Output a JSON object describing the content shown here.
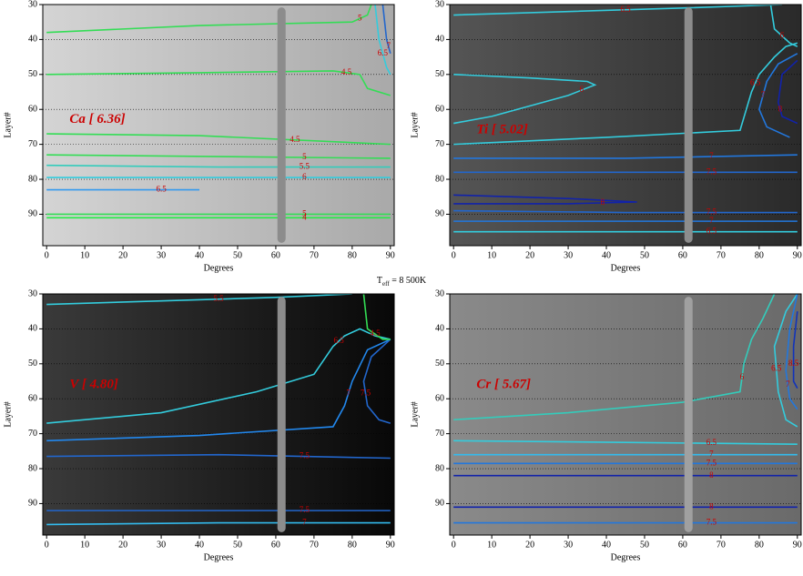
{
  "figure_label": {
    "main": "T",
    "sub": "eff",
    "rest": " = 8 500K"
  },
  "chart_data": [
    {
      "type": "contour",
      "annotation": "Ca [ 6.36]",
      "annotation_at": [
        6,
        63
      ],
      "x_label": "Degrees",
      "y_label": "Layer#",
      "xlim": [
        -1,
        91
      ],
      "ylim": [
        30,
        99
      ],
      "y_inverted": true,
      "xticks": [
        0,
        10,
        20,
        30,
        40,
        50,
        60,
        70,
        80,
        90
      ],
      "yticks": [
        30,
        40,
        50,
        60,
        70,
        80,
        90
      ],
      "grid": true,
      "background": [
        "#d4d4d4",
        "#a9a9a9"
      ],
      "marker": {
        "x": 61.5,
        "y": [
          32,
          97
        ],
        "color": "#8c8c8c"
      },
      "series": [
        {
          "level": 5,
          "color": "#33dd55",
          "x": [
            0,
            40,
            80,
            84,
            85
          ],
          "values": [
            38,
            36,
            35,
            33,
            30
          ]
        },
        {
          "level": 4.5,
          "color": "#33dd55",
          "x": [
            0,
            40,
            75,
            82,
            84,
            90
          ],
          "values": [
            50,
            49.5,
            49,
            50,
            54,
            56
          ]
        },
        {
          "level": 4.5,
          "color": "#33dd55",
          "x": [
            0,
            40,
            90
          ],
          "values": [
            67,
            67.5,
            70
          ]
        },
        {
          "level": 5,
          "color": "#33dd55",
          "x": [
            0,
            45,
            90
          ],
          "values": [
            73,
            73.5,
            74
          ]
        },
        {
          "level": 5.5,
          "color": "#33ccbb",
          "x": [
            0,
            45,
            90
          ],
          "values": [
            76,
            76.5,
            76.5
          ]
        },
        {
          "level": 6,
          "color": "#33ccdd",
          "x": [
            0,
            45,
            90
          ],
          "values": [
            79.5,
            79.5,
            79.5
          ]
        },
        {
          "level": 6.5,
          "color": "#3399ee",
          "x": [
            0,
            20,
            40
          ],
          "values": [
            83,
            83,
            83
          ]
        },
        {
          "level": 5,
          "color": "#33dd55",
          "x": [
            0,
            45,
            90
          ],
          "values": [
            90,
            90,
            90
          ]
        },
        {
          "level": 4,
          "color": "#22ee44",
          "x": [
            0,
            45,
            90
          ],
          "values": [
            91,
            91,
            91
          ]
        },
        {
          "level": 6.5,
          "color": "#33ccdd",
          "x": [
            86,
            87,
            89,
            90
          ],
          "values": [
            30,
            40,
            48,
            50
          ]
        },
        {
          "level": 7,
          "color": "#2266cc",
          "x": [
            88,
            89,
            90
          ],
          "values": [
            30,
            40,
            44
          ]
        }
      ]
    },
    {
      "type": "contour",
      "annotation": "Ti [ 5.02]",
      "annotation_at": [
        6,
        66
      ],
      "x_label": "Degrees",
      "y_label": "Layer#",
      "xlim": [
        -1,
        91
      ],
      "ylim": [
        30,
        99
      ],
      "y_inverted": true,
      "xticks": [
        0,
        10,
        20,
        30,
        40,
        50,
        60,
        70,
        80,
        90
      ],
      "yticks": [
        30,
        40,
        50,
        60,
        70,
        80,
        90
      ],
      "grid": true,
      "background": [
        "#555555",
        "#2a2a2a"
      ],
      "marker": {
        "x": 61.5,
        "y": [
          32,
          97
        ],
        "color": "#8c8c8c"
      },
      "series": [
        {
          "level": 6.5,
          "color": "#33ccdd",
          "x": [
            0,
            30,
            60,
            86
          ],
          "values": [
            33,
            32,
            31,
            30
          ]
        },
        {
          "level": 6,
          "color": "#33ccdd",
          "x": [
            0,
            20,
            35,
            37,
            30,
            20,
            10,
            0
          ],
          "values": [
            50,
            51,
            52,
            53,
            56,
            59,
            62,
            64
          ]
        },
        {
          "level": 6.5,
          "color": "#33ccdd",
          "x": [
            0,
            40,
            75,
            78,
            80,
            84,
            87,
            90
          ],
          "values": [
            70,
            68,
            66,
            55,
            50,
            45,
            42,
            41
          ]
        },
        {
          "level": 7,
          "color": "#2277dd",
          "x": [
            0,
            45,
            90
          ],
          "values": [
            74,
            74,
            73
          ]
        },
        {
          "level": 7.5,
          "color": "#2266cc",
          "x": [
            0,
            45,
            90
          ],
          "values": [
            78,
            78,
            78
          ]
        },
        {
          "level": 8,
          "color": "#1122aa",
          "x": [
            0,
            30,
            48,
            30,
            0
          ],
          "values": [
            84.5,
            85.5,
            86.5,
            87,
            87
          ]
        },
        {
          "level": 7.5,
          "color": "#2266cc",
          "x": [
            0,
            45,
            90
          ],
          "values": [
            89,
            89.5,
            89.5
          ]
        },
        {
          "level": 7,
          "color": "#2277dd",
          "x": [
            0,
            45,
            90
          ],
          "values": [
            92,
            92,
            92
          ]
        },
        {
          "level": 6.5,
          "color": "#33ccdd",
          "x": [
            0,
            45,
            90
          ],
          "values": [
            95,
            95,
            95
          ]
        },
        {
          "level": 7,
          "color": "#2277dd",
          "x": [
            90,
            85,
            82,
            80,
            82,
            88
          ],
          "values": [
            44,
            47,
            52,
            60,
            65,
            68
          ]
        },
        {
          "level": 8,
          "color": "#1122aa",
          "x": [
            90,
            86,
            85,
            86,
            90
          ],
          "values": [
            46,
            50,
            58,
            62,
            64
          ]
        },
        {
          "level": 6,
          "color": "#33ccdd",
          "x": [
            83,
            84,
            88,
            90
          ],
          "values": [
            30,
            37,
            41,
            42
          ]
        }
      ]
    },
    {
      "type": "contour",
      "annotation": "V [ 4.80]",
      "annotation_at": [
        6,
        56
      ],
      "x_label": "Degrees",
      "y_label": "Layer#",
      "xlim": [
        -1,
        91
      ],
      "ylim": [
        30,
        99
      ],
      "y_inverted": true,
      "xticks": [
        0,
        10,
        20,
        30,
        40,
        50,
        60,
        70,
        80,
        90
      ],
      "yticks": [
        30,
        40,
        50,
        60,
        70,
        80,
        90
      ],
      "grid": true,
      "background": [
        "#3a3a3a",
        "#080808"
      ],
      "marker": {
        "x": 61.5,
        "y": [
          32,
          97
        ],
        "color": "#8c8c8c"
      },
      "series": [
        {
          "level": 5.5,
          "color": "#33ccdd",
          "x": [
            0,
            30,
            60,
            80
          ],
          "values": [
            33,
            32,
            31,
            30
          ]
        },
        {
          "level": 6.5,
          "color": "#33ccdd",
          "x": [
            0,
            30,
            55,
            70,
            75,
            78,
            82,
            86,
            90
          ],
          "values": [
            67,
            64,
            58,
            53,
            45,
            42,
            40,
            42,
            43
          ]
        },
        {
          "level": 7,
          "color": "#2288ee",
          "x": [
            0,
            40,
            75,
            78,
            80,
            84,
            90
          ],
          "values": [
            72,
            70.5,
            68,
            62,
            55,
            46,
            43
          ]
        },
        {
          "level": 7.5,
          "color": "#2266cc",
          "x": [
            0,
            45,
            90
          ],
          "values": [
            76.5,
            76,
            77
          ]
        },
        {
          "level": 7.5,
          "color": "#2266cc",
          "x": [
            0,
            45,
            90
          ],
          "values": [
            92,
            92,
            92
          ]
        },
        {
          "level": 7,
          "color": "#33bbee",
          "x": [
            0,
            45,
            90
          ],
          "values": [
            96,
            95.5,
            95.5
          ]
        },
        {
          "level": 7.5,
          "color": "#2266cc",
          "x": [
            90,
            85,
            83,
            84,
            87,
            90
          ],
          "values": [
            43,
            48,
            55,
            62,
            66,
            67
          ]
        },
        {
          "level": 4.5,
          "color": "#33dd55",
          "x": [
            83,
            84,
            88,
            90
          ],
          "values": [
            30,
            40,
            43,
            43
          ]
        }
      ]
    },
    {
      "type": "contour",
      "annotation": "Cr [ 5.67]",
      "annotation_at": [
        6,
        56
      ],
      "x_label": "Degrees",
      "y_label": "Layer#",
      "xlim": [
        -1,
        91
      ],
      "ylim": [
        30,
        99
      ],
      "y_inverted": true,
      "xticks": [
        0,
        10,
        20,
        30,
        40,
        50,
        60,
        70,
        80,
        90
      ],
      "yticks": [
        30,
        40,
        50,
        60,
        70,
        80,
        90
      ],
      "grid": true,
      "background": [
        "#8a8a8a",
        "#6a6a6a"
      ],
      "marker": {
        "x": 61.5,
        "y": [
          32,
          97
        ],
        "color": "#a0a0a0"
      },
      "series": [
        {
          "level": 6,
          "color": "#33ccbb",
          "x": [
            0,
            30,
            60,
            75,
            76,
            78,
            81,
            84
          ],
          "values": [
            66,
            64,
            61,
            58,
            50,
            43,
            37,
            30
          ]
        },
        {
          "level": 6.5,
          "color": "#33ccdd",
          "x": [
            90,
            87,
            85,
            84,
            87,
            90
          ],
          "values": [
            68,
            66,
            58,
            45,
            35,
            30
          ]
        },
        {
          "level": 7,
          "color": "#2277dd",
          "x": [
            90,
            88,
            87,
            88,
            90
          ],
          "values": [
            30,
            40,
            52,
            60,
            63
          ]
        },
        {
          "level": 8.5,
          "color": "#1133bb",
          "x": [
            90,
            89,
            89,
            90
          ],
          "values": [
            35,
            45,
            55,
            57
          ]
        },
        {
          "level": 6.5,
          "color": "#33ccdd",
          "x": [
            0,
            45,
            90
          ],
          "values": [
            72,
            72.5,
            73
          ]
        },
        {
          "level": 7,
          "color": "#33bbee",
          "x": [
            0,
            45,
            90
          ],
          "values": [
            76,
            76,
            76
          ]
        },
        {
          "level": 7.5,
          "color": "#2277dd",
          "x": [
            0,
            45,
            90
          ],
          "values": [
            78.5,
            78.5,
            78.5
          ]
        },
        {
          "level": 8,
          "color": "#1122aa",
          "x": [
            0,
            45,
            90
          ],
          "values": [
            82,
            82,
            82
          ]
        },
        {
          "level": 8,
          "color": "#1122aa",
          "x": [
            0,
            45,
            90
          ],
          "values": [
            91,
            91,
            91
          ]
        },
        {
          "level": 7.5,
          "color": "#2277dd",
          "x": [
            0,
            45,
            90
          ],
          "values": [
            95.5,
            95.5,
            95.5
          ]
        }
      ]
    }
  ]
}
